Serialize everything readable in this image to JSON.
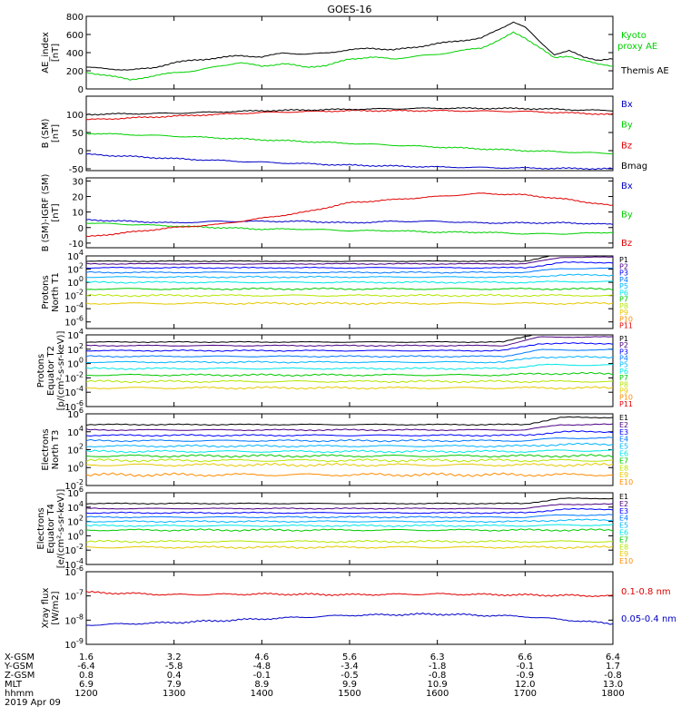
{
  "title": "GOES-16",
  "colors": {
    "black": "#000000",
    "red": "#e00000",
    "green": "#00d000",
    "blue": "#0000c8",
    "ch": [
      "#000000",
      "#4b0082",
      "#0000ff",
      "#0078ff",
      "#00b4ff",
      "#00e6e6",
      "#00c800",
      "#b4e600",
      "#e6c800",
      "#ff8c00",
      "#e60000"
    ]
  },
  "chart_data": [
    {
      "type": "line",
      "panel": "ae",
      "ylabel": "AE_index [nT]",
      "ylim": [
        0,
        800
      ],
      "yticks": [
        "0",
        "200",
        "400",
        "600",
        "800"
      ],
      "legend": [
        "Kyoto proxy AE",
        "Themis AE"
      ],
      "series": [
        {
          "name": "Themis AE",
          "color": "black",
          "x": [
            1200,
            1215,
            1230,
            1245,
            1300,
            1315,
            1330,
            1345,
            1400,
            1415,
            1430,
            1445,
            1500,
            1515,
            1530,
            1545,
            1600,
            1615,
            1630,
            1645,
            1652,
            1700,
            1710,
            1720,
            1730,
            1740,
            1750,
            1800
          ],
          "y": [
            240,
            220,
            210,
            230,
            290,
            320,
            340,
            370,
            350,
            400,
            380,
            400,
            430,
            450,
            430,
            460,
            500,
            530,
            560,
            680,
            740,
            680,
            520,
            380,
            420,
            350,
            320,
            330
          ]
        },
        {
          "name": "Kyoto proxy AE",
          "color": "green",
          "x": [
            1200,
            1215,
            1230,
            1245,
            1300,
            1315,
            1330,
            1345,
            1400,
            1415,
            1430,
            1445,
            1500,
            1515,
            1530,
            1545,
            1600,
            1615,
            1630,
            1645,
            1652,
            1700,
            1710,
            1720,
            1730,
            1740,
            1750,
            1800
          ],
          "y": [
            180,
            150,
            100,
            140,
            180,
            200,
            250,
            290,
            250,
            280,
            240,
            260,
            330,
            350,
            330,
            360,
            380,
            420,
            450,
            560,
            620,
            560,
            460,
            340,
            360,
            320,
            270,
            250
          ]
        }
      ]
    },
    {
      "type": "line",
      "panel": "bsm",
      "ylabel": "B (SM) [nT]",
      "ylim": [
        -55,
        150
      ],
      "yticks": [
        "-50",
        "0",
        "50",
        "100"
      ],
      "legend": [
        "Bx",
        "By",
        "Bz",
        "Bmag"
      ],
      "series": [
        {
          "name": "Bx",
          "color": "blue",
          "x": [
            1200,
            1300,
            1400,
            1500,
            1600,
            1700,
            1800
          ],
          "y": [
            -10,
            -22,
            -32,
            -40,
            -45,
            -48,
            -50
          ]
        },
        {
          "name": "By",
          "color": "green",
          "x": [
            1200,
            1300,
            1400,
            1500,
            1600,
            1700,
            1800
          ],
          "y": [
            48,
            40,
            30,
            20,
            10,
            0,
            -8
          ]
        },
        {
          "name": "Bz",
          "color": "red",
          "x": [
            1200,
            1300,
            1400,
            1500,
            1600,
            1700,
            1800
          ],
          "y": [
            85,
            95,
            105,
            110,
            110,
            108,
            100
          ]
        },
        {
          "name": "Bmag",
          "color": "black",
          "x": [
            1200,
            1300,
            1400,
            1500,
            1600,
            1700,
            1800
          ],
          "y": [
            100,
            103,
            110,
            114,
            117,
            116,
            110
          ]
        }
      ]
    },
    {
      "type": "line",
      "panel": "digrf",
      "ylabel": "B (SM)-IGRF (SM) [nT]",
      "ylim": [
        -13,
        32
      ],
      "yticks": [
        "-10",
        "0",
        "10",
        "20",
        "30"
      ],
      "legend": [
        "Bx",
        "By",
        "Bz"
      ],
      "series": [
        {
          "name": "Bx",
          "color": "blue",
          "x": [
            1200,
            1230,
            1300,
            1330,
            1400,
            1430,
            1500,
            1530,
            1600,
            1630,
            1700,
            1730,
            1800
          ],
          "y": [
            5,
            4,
            3,
            4,
            4,
            4,
            3,
            4,
            4,
            3,
            3,
            3,
            2
          ]
        },
        {
          "name": "By",
          "color": "green",
          "x": [
            1200,
            1230,
            1300,
            1330,
            1400,
            1430,
            1500,
            1530,
            1600,
            1630,
            1700,
            1730,
            1800
          ],
          "y": [
            3,
            2,
            1,
            0,
            -1,
            -1,
            -2,
            -2,
            -3,
            -3,
            -4,
            -4,
            -3
          ]
        },
        {
          "name": "Bz",
          "color": "red",
          "x": [
            1200,
            1230,
            1300,
            1330,
            1400,
            1430,
            1500,
            1530,
            1600,
            1630,
            1700,
            1730,
            1800
          ],
          "y": [
            -6,
            -3,
            0,
            2,
            6,
            10,
            16,
            18,
            20,
            22,
            21,
            18,
            14
          ]
        }
      ]
    },
    {
      "type": "line",
      "panel": "pn",
      "ylabel": "Protons North T1",
      "log": true,
      "ylim_exp": [
        -7,
        4
      ],
      "yticks_exp": [
        4,
        2,
        0,
        -2,
        -4,
        -6
      ],
      "legend": [
        "P1",
        "P2",
        "P3",
        "P4",
        "P5",
        "P6",
        "P7",
        "P8",
        "P9",
        "P10",
        "P11"
      ],
      "levels": [
        3.2,
        2.8,
        2.2,
        1.5,
        0.8,
        0.0,
        -1.0,
        -2.0,
        -3.2,
        -7,
        -7
      ],
      "rise_from": 1700,
      "rise": [
        1.2,
        1.0,
        0.8,
        0.6,
        0.3,
        0.1,
        0,
        0,
        0,
        0,
        0
      ]
    },
    {
      "type": "line",
      "panel": "pe",
      "ylabel": "Protons Equator T2 [p/(cm²-s-sr-keV)]",
      "log": true,
      "ylim_exp": [
        -6,
        4
      ],
      "yticks_exp": [
        4,
        2,
        0,
        -2,
        -4,
        -6
      ],
      "legend": [
        "P1",
        "P2",
        "P3",
        "P4",
        "P5",
        "P6",
        "P7",
        "P8",
        "P9",
        "P10",
        "P11"
      ],
      "levels": [
        3.0,
        2.5,
        1.8,
        1.0,
        0.2,
        -0.7,
        -1.6,
        -2.5,
        -3.4,
        -6,
        -6
      ],
      "rise_from": 1645,
      "rise": [
        1.3,
        1.2,
        1.0,
        0.9,
        0.7,
        0.5,
        0.2,
        0,
        0,
        0,
        0
      ]
    },
    {
      "type": "line",
      "panel": "en",
      "ylabel": "Electrons North T3",
      "log": true,
      "ylim_exp": [
        -2,
        6
      ],
      "yticks_exp": [
        6,
        4,
        2,
        0,
        -2
      ],
      "legend": [
        "E1",
        "E2",
        "E3",
        "E4",
        "E5",
        "E6",
        "E7",
        "E8",
        "E9",
        "E10"
      ],
      "levels": [
        4.8,
        4.2,
        3.6,
        3.0,
        2.4,
        1.8,
        1.3,
        0.8,
        0.3,
        -0.8
      ],
      "rise_from": 1700,
      "rise": [
        0.8,
        0.6,
        0.4,
        0.3,
        0.2,
        0.1,
        0,
        0,
        0,
        0
      ]
    },
    {
      "type": "line",
      "panel": "ee",
      "ylabel": "Electrons Equator T4 [e/(cm²-s-sr-keV)]",
      "log": true,
      "ylim_exp": [
        -4,
        6
      ],
      "yticks_exp": [
        6,
        4,
        2,
        0,
        -2,
        -4
      ],
      "legend": [
        "E1",
        "E2",
        "E3",
        "E4",
        "E5",
        "E6",
        "E7",
        "E8",
        "E9",
        "E10"
      ],
      "levels": [
        4.5,
        3.8,
        3.2,
        2.6,
        2.0,
        1.4,
        0.8,
        -0.8,
        -1.6,
        -4
      ],
      "rise_from": 1700,
      "rise": [
        0.7,
        0.6,
        0.5,
        0.3,
        0.2,
        0.1,
        0,
        0,
        0,
        0
      ]
    },
    {
      "type": "line",
      "panel": "xray",
      "ylabel": "Xray flux [W/m2]",
      "log": true,
      "ylim_exp": [
        -9,
        -6
      ],
      "yticks_exp": [
        -6,
        -7,
        -8,
        -9
      ],
      "legend": [
        "0.1-0.8 nm",
        "0.05-0.4 nm"
      ],
      "series": [
        {
          "name": "0.1-0.8 nm",
          "color": "red",
          "x": [
            1200,
            1300,
            1400,
            1500,
            1600,
            1700,
            1800
          ],
          "y_exp": [
            -6.85,
            -6.95,
            -6.92,
            -6.95,
            -6.92,
            -6.96,
            -7.0
          ]
        },
        {
          "name": "0.05-0.4 nm",
          "color": "blue",
          "x": [
            1200,
            1300,
            1400,
            1500,
            1600,
            1700,
            1800
          ],
          "y_exp": [
            -8.2,
            -8.1,
            -7.95,
            -7.8,
            -7.75,
            -7.85,
            -8.15
          ]
        }
      ]
    }
  ],
  "xaxis": {
    "x": [
      1200,
      1300,
      1400,
      1500,
      1600,
      1700,
      1800
    ],
    "rows": [
      {
        "label": "X-GSM",
        "values": [
          "1.6",
          "3.2",
          "4.6",
          "5.6",
          "6.3",
          "6.6",
          "6.4"
        ]
      },
      {
        "label": "Y-GSM",
        "values": [
          "-6.4",
          "-5.8",
          "-4.8",
          "-3.4",
          "-1.8",
          "-0.1",
          "1.7"
        ]
      },
      {
        "label": "Z-GSM",
        "values": [
          "0.8",
          "0.4",
          "-0.1",
          "-0.5",
          "-0.8",
          "-0.9",
          "-0.8"
        ]
      },
      {
        "label": "MLT",
        "values": [
          "6.9",
          "7.9",
          "8.9",
          "9.9",
          "10.9",
          "12.0",
          "13.0"
        ]
      },
      {
        "label": "hhmm",
        "values": [
          "1200",
          "1300",
          "1400",
          "1500",
          "1600",
          "1700",
          "1800"
        ]
      }
    ],
    "date": "2019 Apr 09"
  }
}
